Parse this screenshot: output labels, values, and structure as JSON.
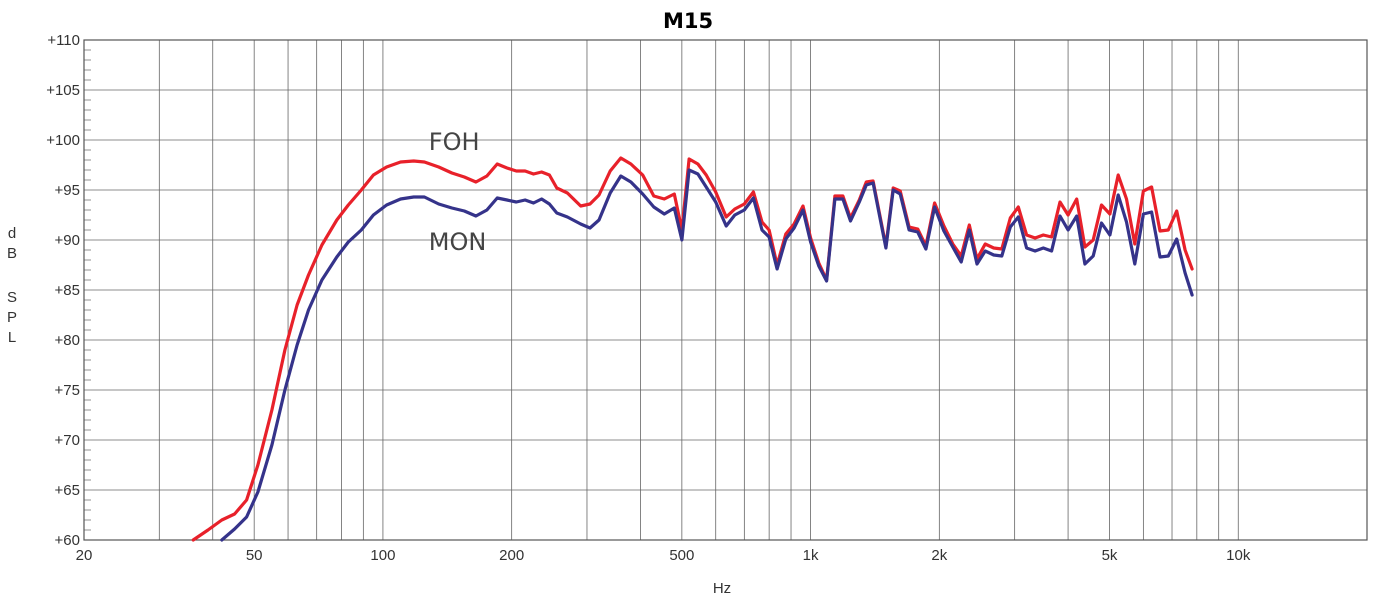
{
  "chart_data": {
    "type": "line",
    "title": "M15",
    "xlabel": "Hz",
    "ylabel": [
      "d",
      "B",
      "S",
      "P",
      "L"
    ],
    "x_scale": "log",
    "xlim": [
      20,
      20000
    ],
    "ylim": [
      60,
      110
    ],
    "grid": true,
    "x_ticks": [
      {
        "value": 20,
        "label": "20"
      },
      {
        "value": 50,
        "label": "50"
      },
      {
        "value": 100,
        "label": "100"
      },
      {
        "value": 200,
        "label": "200"
      },
      {
        "value": 500,
        "label": "500"
      },
      {
        "value": 1000,
        "label": "1k"
      },
      {
        "value": 2000,
        "label": "2k"
      },
      {
        "value": 5000,
        "label": "5k"
      },
      {
        "value": 10000,
        "label": "10k"
      }
    ],
    "y_ticks": [
      {
        "value": 110,
        "label": "+110"
      },
      {
        "value": 105,
        "label": "+105"
      },
      {
        "value": 100,
        "label": "+100"
      },
      {
        "value": 95,
        "label": "+95"
      },
      {
        "value": 90,
        "label": "+90"
      },
      {
        "value": 85,
        "label": "+85"
      },
      {
        "value": 80,
        "label": "+80"
      },
      {
        "value": 75,
        "label": "+75"
      },
      {
        "value": 70,
        "label": "+70"
      },
      {
        "value": 65,
        "label": "+65"
      },
      {
        "value": 60,
        "label": "+60"
      }
    ],
    "annotations": [
      {
        "text": "FOH",
        "x": 128,
        "y": 99.8
      },
      {
        "text": "MON",
        "x": 128,
        "y": 89.8
      }
    ],
    "series": [
      {
        "name": "FOH",
        "color": "#e8212a",
        "points": [
          [
            36,
            60
          ],
          [
            39,
            61
          ],
          [
            42,
            62
          ],
          [
            45,
            62.6
          ],
          [
            48,
            64
          ],
          [
            51,
            67.5
          ],
          [
            55,
            73
          ],
          [
            59,
            79
          ],
          [
            63,
            83.5
          ],
          [
            67,
            86.5
          ],
          [
            72,
            89.5
          ],
          [
            78,
            92
          ],
          [
            83,
            93.5
          ],
          [
            89,
            95
          ],
          [
            95,
            96.5
          ],
          [
            102,
            97.3
          ],
          [
            110,
            97.8
          ],
          [
            118,
            97.9
          ],
          [
            125,
            97.8
          ],
          [
            135,
            97.3
          ],
          [
            145,
            96.7
          ],
          [
            155,
            96.3
          ],
          [
            165,
            95.8
          ],
          [
            175,
            96.4
          ],
          [
            185,
            97.6
          ],
          [
            195,
            97.2
          ],
          [
            205,
            96.9
          ],
          [
            215,
            96.9
          ],
          [
            225,
            96.6
          ],
          [
            235,
            96.8
          ],
          [
            245,
            96.5
          ],
          [
            255,
            95.2
          ],
          [
            270,
            94.7
          ],
          [
            290,
            93.4
          ],
          [
            305,
            93.6
          ],
          [
            320,
            94.5
          ],
          [
            340,
            96.9
          ],
          [
            360,
            98.2
          ],
          [
            380,
            97.6
          ],
          [
            405,
            96.5
          ],
          [
            430,
            94.4
          ],
          [
            455,
            94.1
          ],
          [
            480,
            94.6
          ],
          [
            500,
            91
          ],
          [
            520,
            98.1
          ],
          [
            545,
            97.6
          ],
          [
            570,
            96.5
          ],
          [
            600,
            94.8
          ],
          [
            635,
            92.3
          ],
          [
            665,
            93.1
          ],
          [
            700,
            93.6
          ],
          [
            735,
            94.8
          ],
          [
            770,
            91.8
          ],
          [
            800,
            91
          ],
          [
            835,
            87.5
          ],
          [
            875,
            90.6
          ],
          [
            915,
            91.6
          ],
          [
            960,
            93.4
          ],
          [
            1000,
            90.2
          ],
          [
            1045,
            87.7
          ],
          [
            1090,
            86
          ],
          [
            1140,
            94.4
          ],
          [
            1190,
            94.4
          ],
          [
            1240,
            92.2
          ],
          [
            1300,
            94
          ],
          [
            1350,
            95.8
          ],
          [
            1400,
            95.9
          ],
          [
            1500,
            89.4
          ],
          [
            1560,
            95.2
          ],
          [
            1620,
            94.9
          ],
          [
            1700,
            91.3
          ],
          [
            1780,
            91.1
          ],
          [
            1860,
            89.4
          ],
          [
            1950,
            93.7
          ],
          [
            2050,
            91.4
          ],
          [
            2150,
            89.6
          ],
          [
            2250,
            88.4
          ],
          [
            2350,
            91.5
          ],
          [
            2450,
            88.1
          ],
          [
            2560,
            89.6
          ],
          [
            2680,
            89.2
          ],
          [
            2800,
            89.1
          ],
          [
            2930,
            92.2
          ],
          [
            3060,
            93.3
          ],
          [
            3200,
            90.5
          ],
          [
            3350,
            90.2
          ],
          [
            3500,
            90.5
          ],
          [
            3660,
            90.3
          ],
          [
            3830,
            93.8
          ],
          [
            4000,
            92.5
          ],
          [
            4190,
            94.1
          ],
          [
            4380,
            89.3
          ],
          [
            4580,
            90
          ],
          [
            4790,
            93.5
          ],
          [
            5010,
            92.6
          ],
          [
            5240,
            96.5
          ],
          [
            5480,
            94.1
          ],
          [
            5730,
            89.6
          ],
          [
            6000,
            94.9
          ],
          [
            6270,
            95.3
          ],
          [
            6560,
            90.9
          ],
          [
            6860,
            91
          ],
          [
            7180,
            92.9
          ],
          [
            7510,
            89
          ],
          [
            7800,
            87.1
          ]
        ]
      },
      {
        "name": "MON",
        "color": "#35338a",
        "points": [
          [
            42,
            60
          ],
          [
            45,
            61.1
          ],
          [
            48,
            62.3
          ],
          [
            51,
            64.8
          ],
          [
            55,
            69.5
          ],
          [
            59,
            75
          ],
          [
            63,
            79.5
          ],
          [
            67,
            83
          ],
          [
            72,
            86
          ],
          [
            78,
            88.3
          ],
          [
            83,
            89.8
          ],
          [
            89,
            91
          ],
          [
            95,
            92.5
          ],
          [
            102,
            93.5
          ],
          [
            110,
            94.1
          ],
          [
            118,
            94.3
          ],
          [
            125,
            94.3
          ],
          [
            135,
            93.6
          ],
          [
            145,
            93.2
          ],
          [
            155,
            92.9
          ],
          [
            165,
            92.4
          ],
          [
            175,
            93
          ],
          [
            185,
            94.2
          ],
          [
            195,
            94
          ],
          [
            205,
            93.8
          ],
          [
            215,
            94
          ],
          [
            225,
            93.7
          ],
          [
            235,
            94.1
          ],
          [
            245,
            93.6
          ],
          [
            255,
            92.7
          ],
          [
            270,
            92.3
          ],
          [
            290,
            91.6
          ],
          [
            305,
            91.2
          ],
          [
            320,
            92
          ],
          [
            340,
            94.7
          ],
          [
            360,
            96.4
          ],
          [
            380,
            95.8
          ],
          [
            405,
            94.6
          ],
          [
            430,
            93.3
          ],
          [
            455,
            92.6
          ],
          [
            480,
            93.2
          ],
          [
            500,
            90
          ],
          [
            520,
            97
          ],
          [
            545,
            96.6
          ],
          [
            570,
            95.3
          ],
          [
            600,
            93.8
          ],
          [
            635,
            91.4
          ],
          [
            665,
            92.5
          ],
          [
            700,
            93
          ],
          [
            735,
            94.2
          ],
          [
            770,
            91
          ],
          [
            800,
            90.3
          ],
          [
            835,
            87.1
          ],
          [
            875,
            90.1
          ],
          [
            915,
            91.2
          ],
          [
            960,
            93
          ],
          [
            1000,
            89.8
          ],
          [
            1045,
            87.4
          ],
          [
            1090,
            85.9
          ],
          [
            1140,
            94.1
          ],
          [
            1190,
            94.1
          ],
          [
            1240,
            91.9
          ],
          [
            1300,
            93.8
          ],
          [
            1350,
            95.5
          ],
          [
            1400,
            95.7
          ],
          [
            1500,
            89.2
          ],
          [
            1560,
            95
          ],
          [
            1620,
            94.6
          ],
          [
            1700,
            91
          ],
          [
            1780,
            90.8
          ],
          [
            1860,
            89.1
          ],
          [
            1950,
            93.3
          ],
          [
            2050,
            90.9
          ],
          [
            2150,
            89.3
          ],
          [
            2250,
            87.8
          ],
          [
            2350,
            91
          ],
          [
            2450,
            87.6
          ],
          [
            2560,
            88.9
          ],
          [
            2680,
            88.5
          ],
          [
            2800,
            88.4
          ],
          [
            2930,
            91.3
          ],
          [
            3060,
            92.3
          ],
          [
            3200,
            89.2
          ],
          [
            3350,
            88.9
          ],
          [
            3500,
            89.2
          ],
          [
            3660,
            88.9
          ],
          [
            3830,
            92.4
          ],
          [
            4000,
            91
          ],
          [
            4190,
            92.4
          ],
          [
            4380,
            87.6
          ],
          [
            4580,
            88.4
          ],
          [
            4790,
            91.7
          ],
          [
            5010,
            90.5
          ],
          [
            5240,
            94.5
          ],
          [
            5480,
            91.8
          ],
          [
            5730,
            87.6
          ],
          [
            6000,
            92.6
          ],
          [
            6270,
            92.8
          ],
          [
            6560,
            88.3
          ],
          [
            6860,
            88.4
          ],
          [
            7180,
            90.1
          ],
          [
            7510,
            86.7
          ],
          [
            7800,
            84.5
          ]
        ]
      }
    ]
  }
}
